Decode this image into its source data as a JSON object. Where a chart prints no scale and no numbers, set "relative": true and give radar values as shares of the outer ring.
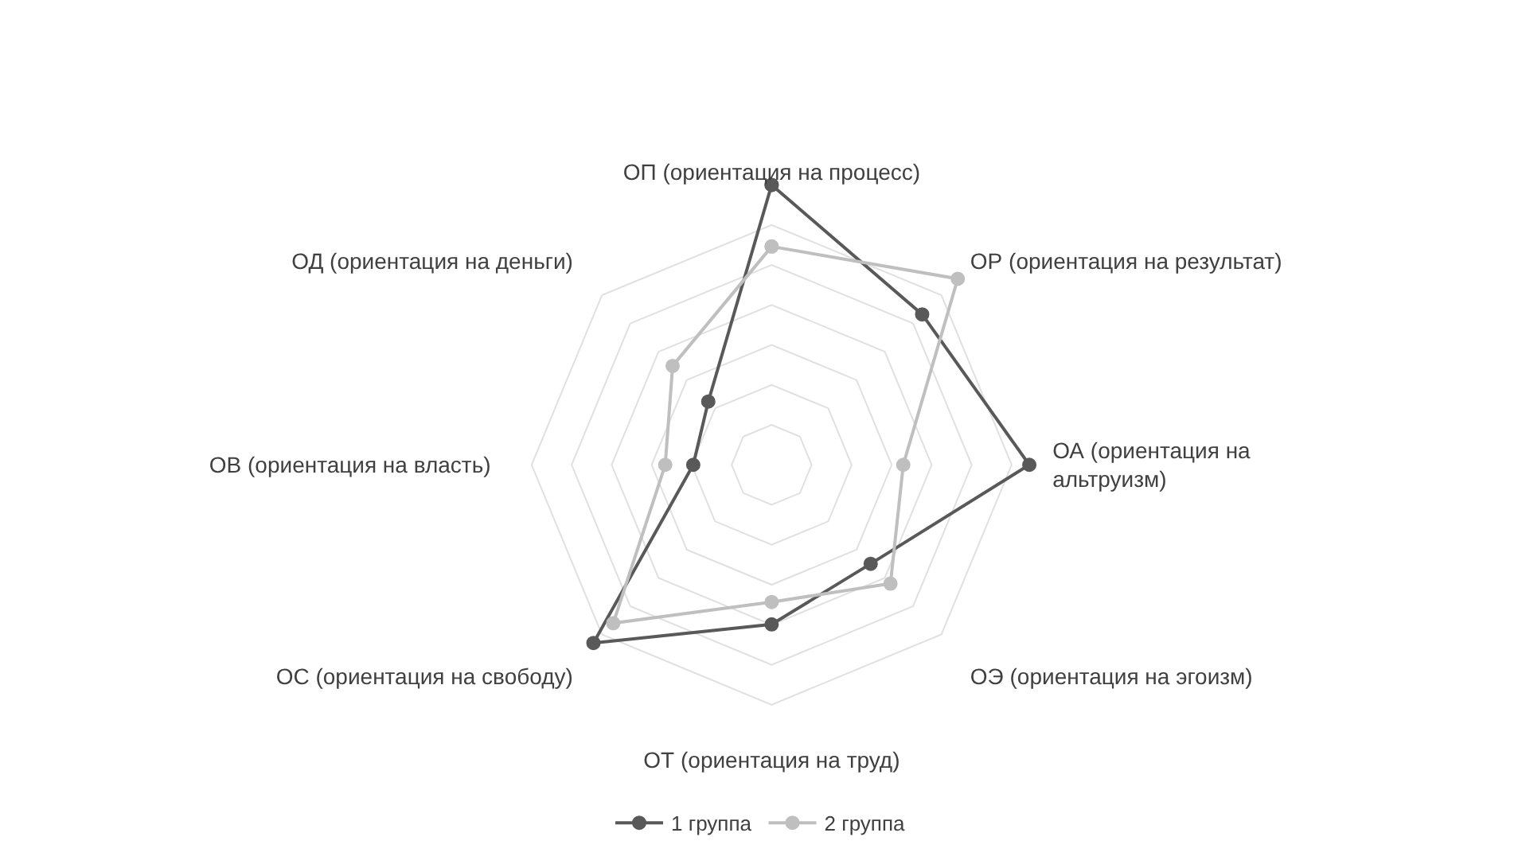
{
  "chart_data": {
    "type": "radar",
    "relative": true,
    "grid": true,
    "legend": "bottom",
    "marker": "circle",
    "line_style": "solid",
    "categories": [
      "ОП (ориентация на процесс)",
      "ОР (ориентация на результат)",
      "ОА (ориентация на\nальтруизм)",
      "ОЭ (ориентация на эгоизм)",
      "ОТ (ориентация на труд)",
      "ОС (ориентация на свободу)",
      "ОВ (ориентация на власть)",
      "ОД (ориентация на деньги)"
    ],
    "series": [
      {
        "name": "1 группа",
        "color": "#595959",
        "values": [
          1.0,
          0.76,
          0.92,
          0.5,
          0.57,
          0.9,
          0.28,
          0.32
        ]
      },
      {
        "name": "2 группа",
        "color": "#bfbfbf",
        "values": [
          0.78,
          0.94,
          0.47,
          0.6,
          0.49,
          0.8,
          0.38,
          0.5
        ]
      }
    ]
  }
}
